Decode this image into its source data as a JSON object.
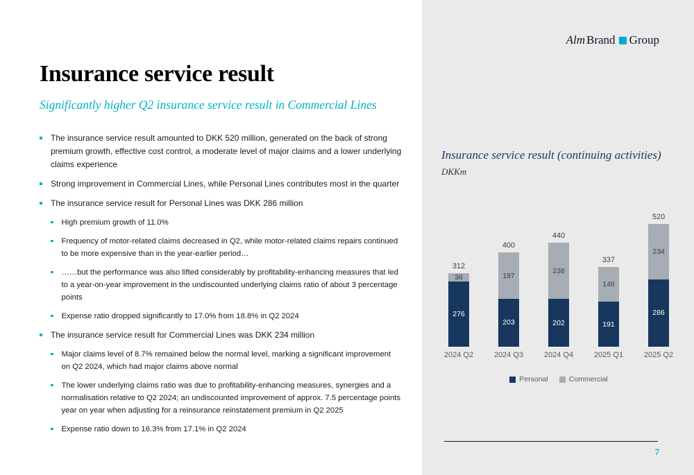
{
  "slide": {
    "title": "Insurance service result",
    "subtitle": "Significantly higher Q2 insurance service result in Commercial Lines",
    "page_number": "7",
    "bullets": [
      {
        "level": 1,
        "text": "The insurance service result amounted to DKK 520 million, generated on the back of strong premium growth, effective cost control, a moderate level of major claims and a lower underlying claims experience"
      },
      {
        "level": 1,
        "text": "Strong improvement in Commercial Lines, while Personal Lines contributes most in the quarter"
      },
      {
        "level": 1,
        "text": "The insurance service result for Personal Lines was DKK 286 million"
      },
      {
        "level": 2,
        "text": "High premium growth of 11.0%"
      },
      {
        "level": 2,
        "text": "Frequency of motor-related claims decreased in Q2, while motor-related claims repairs continued to be more expensive than in the year-earlier period…"
      },
      {
        "level": 2,
        "text": "……but the performance was also lifted considerably by profitability-enhancing measures that led to a year-on-year improvement in the undiscounted underlying claims ratio of about 3 percentage points"
      },
      {
        "level": 2,
        "text": "Expense ratio dropped significantly to 17.0% from 18.8% in Q2 2024"
      },
      {
        "level": 1,
        "text": "The insurance service result for Commercial Lines was DKK 234 million"
      },
      {
        "level": 2,
        "text": "Major claims level of 8.7% remained below the normal level, marking a significant improvement on Q2 2024, which had major claims above normal"
      },
      {
        "level": 2,
        "text": "The lower underlying claims ratio was due to profitability-enhancing measures, synergies and a normalisation relative to Q2 2024; an undiscounted improvement of approx. 7.5 percentage points year on year when adjusting for a reinsurance reinstatement premium in Q2 2025"
      },
      {
        "level": 2,
        "text": "Expense ratio down to 16.3% from 17.1% in Q2 2024"
      }
    ]
  },
  "logo": {
    "alm": "Alm",
    "brand": "Brand",
    "group": "Group",
    "accent_color": "#00aadc"
  },
  "chart": {
    "title": "Insurance service result (continuing activities)",
    "unit_label": "DKKm",
    "legend": [
      {
        "label": "Personal",
        "color": "#17375e"
      },
      {
        "label": "Commercial",
        "color": "#a6adb5"
      }
    ]
  },
  "chart_data": {
    "type": "bar",
    "stacked": true,
    "title": "Insurance service result (continuing activities)",
    "ylabel": "DKKm",
    "ylim": [
      0,
      560
    ],
    "categories": [
      "2024 Q2",
      "2024 Q3",
      "2024 Q4",
      "2025 Q1",
      "2025 Q2"
    ],
    "series": [
      {
        "name": "Personal",
        "color": "#17375e",
        "values": [
          276,
          203,
          202,
          191,
          286
        ]
      },
      {
        "name": "Commercial",
        "color": "#a6adb5",
        "values": [
          36,
          197,
          238,
          146,
          234
        ]
      }
    ],
    "totals": [
      312,
      400,
      440,
      337,
      520
    ],
    "legend_position": "bottom",
    "grid": false
  }
}
